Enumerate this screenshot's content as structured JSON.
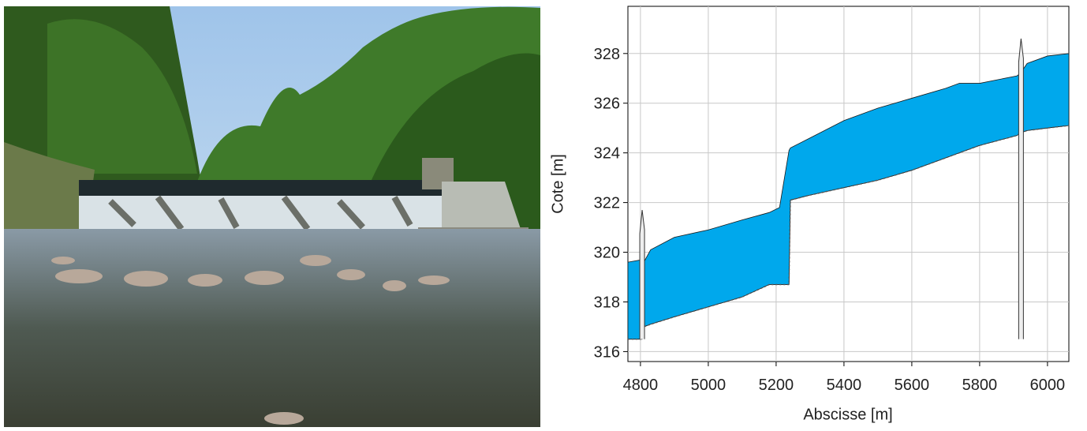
{
  "chart_data": {
    "type": "area-between",
    "x_label": "Abscisse [m]",
    "y_label": "Cote [m]",
    "x": [
      4763,
      4805,
      4810,
      4830,
      4900,
      5000,
      5100,
      5180,
      5210,
      5238,
      5242,
      5300,
      5400,
      5500,
      5600,
      5700,
      5740,
      5800,
      5910,
      5920,
      5940,
      6000,
      6063
    ],
    "series": [
      {
        "color": "#00a8ec",
        "values": [
          319.6,
          319.7,
          319.6,
          320.1,
          320.6,
          320.9,
          321.3,
          321.6,
          321.8,
          324.1,
          324.2,
          324.6,
          325.3,
          325.8,
          326.2,
          326.6,
          326.8,
          326.8,
          327.1,
          327.2,
          327.6,
          327.9,
          328.0
        ]
      },
      {
        "color": "#555555",
        "values": [
          316.5,
          316.5,
          317.0,
          317.1,
          317.4,
          317.8,
          318.2,
          318.7,
          318.7,
          318.7,
          322.1,
          322.3,
          322.6,
          322.9,
          323.3,
          323.8,
          324.0,
          324.3,
          324.7,
          324.8,
          324.9,
          325.0,
          325.1
        ]
      }
    ],
    "weirs": {
      "x": [
        4805,
        5922
      ],
      "top": [
        321.7,
        328.6
      ]
    },
    "xlim": [
      4763,
      6063
    ],
    "ylim": [
      315.6,
      329.9
    ],
    "xticks": [
      4800,
      5000,
      5200,
      5400,
      5600,
      5800,
      6000
    ],
    "yticks": [
      316,
      318,
      320,
      322,
      324,
      326,
      328
    ],
    "grid": true
  }
}
